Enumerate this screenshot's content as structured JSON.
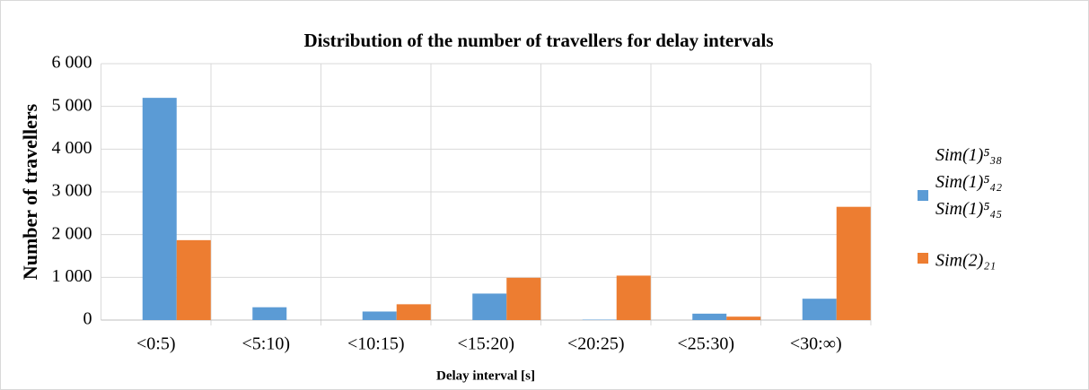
{
  "chart_data": {
    "type": "bar",
    "title": "Distribution of the number of travellers for delay intervals",
    "x_label": "Delay interval [s]",
    "y_label": "Number of travellers",
    "categories": [
      "<0:5)",
      "<5:10)",
      "<10:15)",
      "<15:20)",
      "<20:25)",
      "<25:30)",
      "<30:∞)"
    ],
    "series": [
      {
        "name": "Sim(1)⁵₃₈ Sim(1)⁵₄₂ Sim(1)⁵₄₅",
        "color": "#5b9bd5",
        "values": [
          5200,
          300,
          200,
          620,
          10,
          150,
          500
        ]
      },
      {
        "name": "Sim(2)₂₁",
        "color": "#ed7d31",
        "values": [
          1870,
          0,
          370,
          990,
          1040,
          80,
          2650
        ]
      }
    ],
    "ylim": [
      0,
      6000
    ],
    "yticks": [
      0,
      {
        "value": 1000,
        "label": "1 000"
      },
      {
        "value": 2000,
        "label": "2 000"
      },
      {
        "value": 3000,
        "label": "3 000"
      },
      {
        "value": 4000,
        "label": "4 000"
      },
      {
        "value": 5000,
        "label": "5 000"
      },
      {
        "value": 6000,
        "label": "6 000"
      }
    ],
    "grid": true,
    "legend": "right"
  }
}
